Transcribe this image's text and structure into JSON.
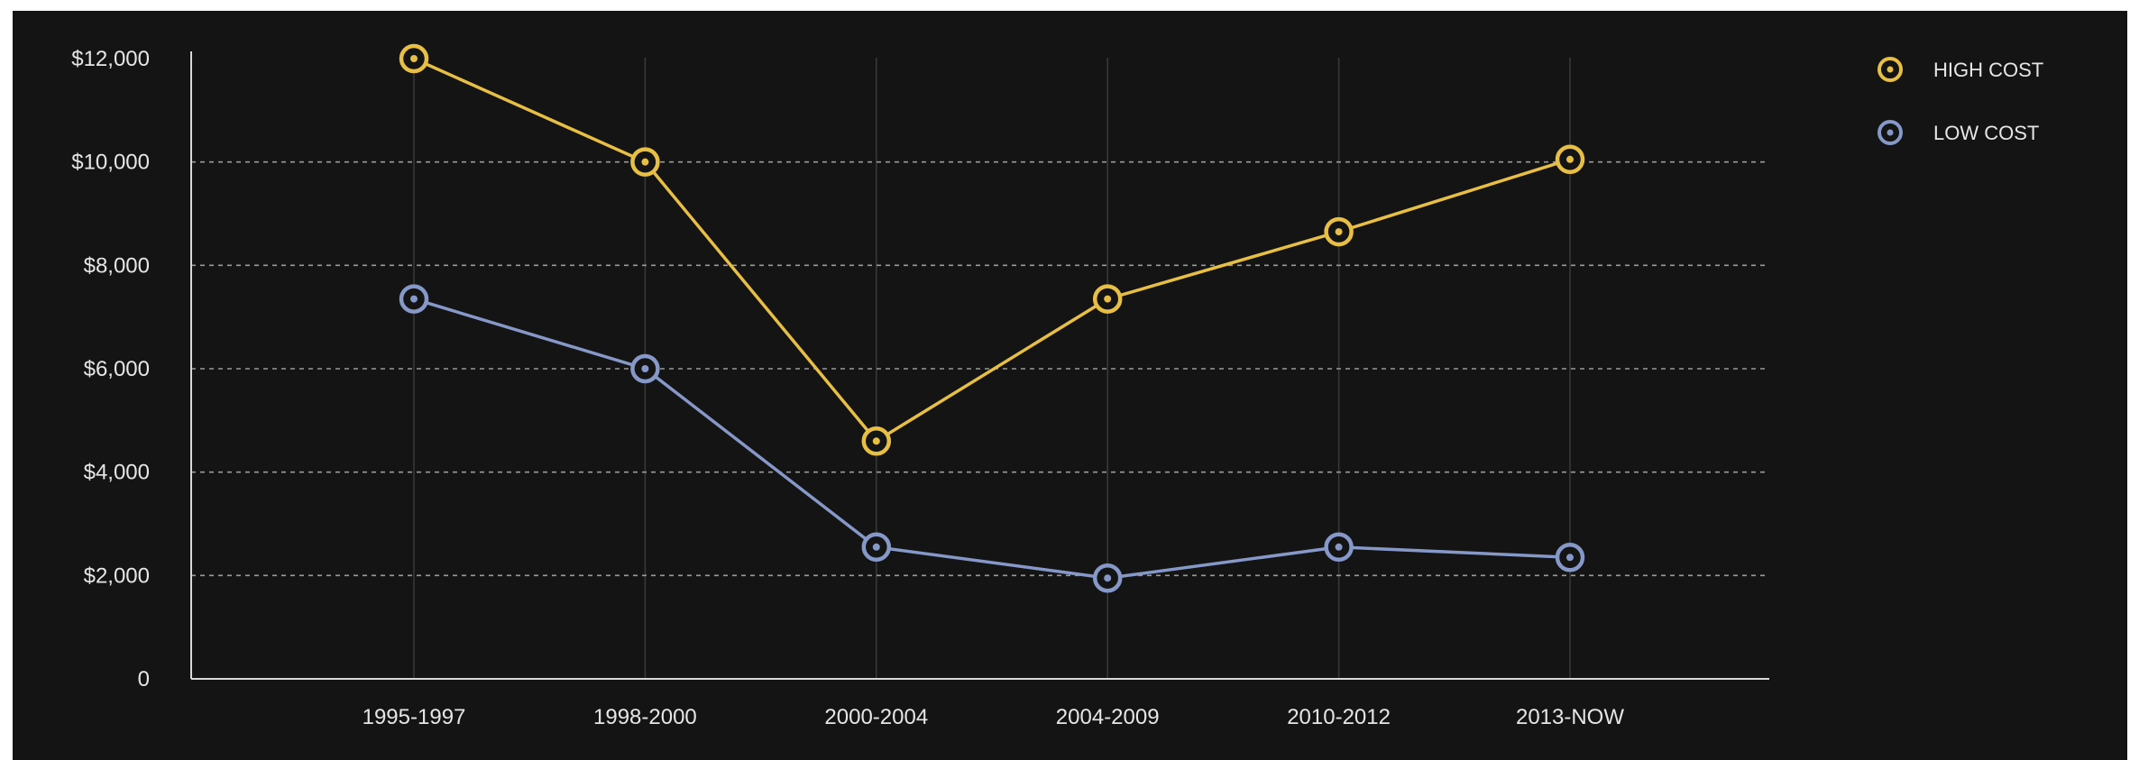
{
  "chart_data": {
    "type": "line",
    "categories": [
      "1995-1997",
      "1998-2000",
      "2000-2004",
      "2004-2009",
      "2010-2012",
      "2013-NOW"
    ],
    "series": [
      {
        "name": "HIGH COST",
        "color": "#e8bf45",
        "values": [
          12000,
          10000,
          4600,
          7350,
          8650,
          10050
        ]
      },
      {
        "name": "LOW COST",
        "color": "#8698c8",
        "values": [
          7350,
          6000,
          2550,
          1950,
          2550,
          2350
        ]
      }
    ],
    "y_ticks": [
      {
        "value": 0,
        "label": "0"
      },
      {
        "value": 2000,
        "label": "$2,000"
      },
      {
        "value": 4000,
        "label": "$4,000"
      },
      {
        "value": 6000,
        "label": "$6,000"
      },
      {
        "value": 8000,
        "label": "$8,000"
      },
      {
        "value": 10000,
        "label": "$10,000"
      },
      {
        "value": 12000,
        "label": "$12,000"
      }
    ],
    "ylim": [
      0,
      12000
    ],
    "title": "",
    "xlabel": "",
    "ylabel": "",
    "grid": true,
    "legend_position": "top-right",
    "background": "#141414",
    "axis_color": "#d9d9d9",
    "grid_color": "#9a9a9a"
  }
}
